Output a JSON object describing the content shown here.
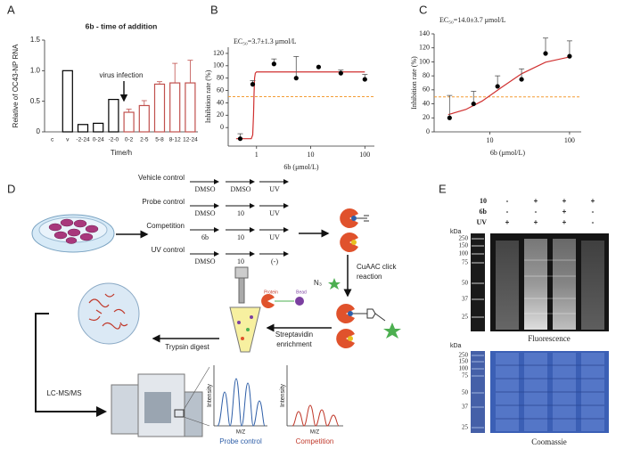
{
  "panel_labels": [
    "A",
    "B",
    "C",
    "D",
    "E"
  ],
  "chart_data": [
    {
      "type": "bar",
      "title": "6b - time of addition",
      "y_label": "Relative of OC43-NP RNA",
      "x_label": "Time/h",
      "categories": [
        "c",
        "v",
        "-2-24",
        "0-24",
        "-2-0",
        "0-2",
        "2-5",
        "5-8",
        "8-12",
        "12-24"
      ],
      "values": [
        0,
        1.0,
        0.12,
        0.14,
        0.53,
        0.32,
        0.43,
        0.78,
        0.8,
        0.8
      ],
      "errors": [
        0,
        0,
        0,
        0,
        0,
        0.05,
        0.08,
        0.04,
        0.32,
        0.37
      ],
      "colors": [
        "#000000",
        "#000000",
        "#000000",
        "#000000",
        "#000000",
        "#c0504d",
        "#c0504d",
        "#c0504d",
        "#c0504d",
        "#c0504d"
      ],
      "ylim": [
        0,
        1.5
      ],
      "yticks": [
        0,
        0.5,
        {
          "value": 1,
          "label": "1.0"
        },
        1.5
      ],
      "annotation": "virus infection"
    },
    {
      "type": "scatter",
      "annotation": "EC₅₀=3.7±1.3 μmol/L",
      "x_label": "6b (μmol/L)",
      "y_label": "Inhibition rate (%)",
      "x": [
        0.5,
        0.85,
        2.1,
        5.4,
        14,
        36,
        100
      ],
      "values": [
        -18,
        70,
        103,
        80,
        98,
        88,
        78
      ],
      "errors": [
        8,
        6,
        8,
        35,
        0,
        5,
        8
      ],
      "color": "#000000",
      "fit": {
        "color": "#d03030",
        "x": [
          0.42,
          0.8,
          0.85,
          0.88,
          0.9,
          0.92,
          0.95,
          1,
          100
        ],
        "y": [
          -18,
          -18,
          -12,
          20,
          55,
          80,
          88,
          90,
          90
        ]
      },
      "log_x": true,
      "xlim": [
        0.3,
        150
      ],
      "xticks": [
        1,
        10,
        100
      ],
      "ylim": [
        -30,
        130
      ],
      "yticks": [
        0,
        20,
        40,
        60,
        80,
        100,
        120
      ],
      "reference_line": {
        "value": 50,
        "color": "#f39c34"
      }
    },
    {
      "type": "scatter",
      "annotation": "EC₅₀=14.0±3.7 μmol/L",
      "x_label": "6b (μmol/L)",
      "y_label": "Inhibition rate (%)",
      "x": [
        3.125,
        6.25,
        12.5,
        25,
        50,
        100
      ],
      "values": [
        20,
        40,
        65,
        75,
        112,
        108
      ],
      "errors": [
        32,
        18,
        15,
        15,
        22,
        22
      ],
      "color": "#000000",
      "fit": {
        "color": "#d03030",
        "x": [
          3,
          5,
          8,
          14,
          25,
          50,
          100
        ],
        "y": [
          24.6,
          32,
          44,
          63.5,
          83,
          99.5,
          107
        ]
      },
      "log_x": true,
      "xlim": [
        2,
        140
      ],
      "xticks": [
        10,
        100
      ],
      "ylim": [
        0,
        140
      ],
      "yticks": [
        0,
        20,
        40,
        60,
        80,
        100,
        120,
        140
      ],
      "reference_line": {
        "value": 50,
        "color": "#f39c34"
      }
    }
  ],
  "diagram": {
    "treatments": [
      {
        "label": "Vehicle control",
        "steps": [
          "DMSO",
          "DMSO",
          "UV"
        ]
      },
      {
        "label": "Probe control",
        "steps": [
          "DMSO",
          "10",
          "UV"
        ]
      },
      {
        "label": "Competition",
        "steps": [
          "6b",
          "10",
          "UV"
        ]
      },
      {
        "label": "UV control",
        "steps": [
          "DMSO",
          "10",
          "(-)"
        ]
      }
    ],
    "reagent": "N₃",
    "click": [
      "CuAAC click",
      "reaction"
    ],
    "enrichment": [
      "Streptavidin",
      "enrichment"
    ],
    "digest": "Trypsin digest",
    "ms": "LC-MS/MS",
    "protein": "Protein",
    "bead": "Bead",
    "spectra": [
      {
        "y_label": "Intensity",
        "x_label": "M/Z",
        "name": "Probe control",
        "color": "#2f5fa8"
      },
      {
        "y_label": "Intensity",
        "x_label": "M/Z",
        "name": "Competition",
        "color": "#c0392b"
      }
    ]
  },
  "gel": {
    "rows": [
      {
        "label": "10",
        "signs": [
          "-",
          "+",
          "+",
          "+"
        ]
      },
      {
        "label": "6b",
        "signs": [
          "-",
          "-",
          "+",
          "-"
        ]
      },
      {
        "label": "UV",
        "signs": [
          "+",
          "+",
          "+",
          "-"
        ]
      }
    ],
    "panels": [
      {
        "unit": "kDa",
        "markers": [
          250,
          150,
          100,
          75,
          50,
          37,
          25
        ],
        "caption": "Fluorescence"
      },
      {
        "unit": "kDa",
        "markers": [
          250,
          150,
          100,
          75,
          50,
          37,
          25
        ],
        "caption": "Coomassie"
      }
    ]
  }
}
